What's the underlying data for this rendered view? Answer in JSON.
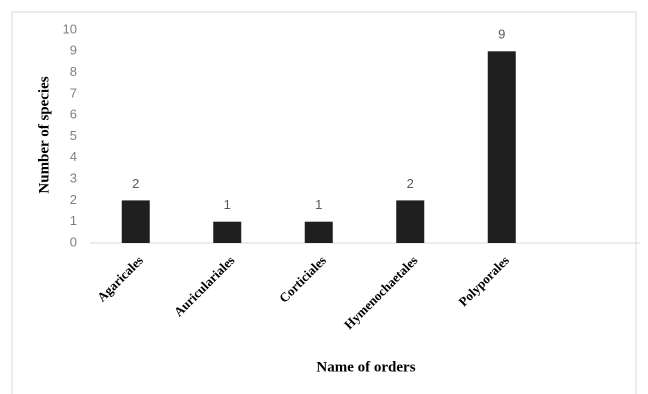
{
  "chart_data": {
    "type": "bar",
    "xlabel": "Name of orders",
    "ylabel": "Number of species",
    "categories": [
      "Agaricales",
      "Auriculariales",
      "Corticiales",
      "Hymenochaetales",
      "Polyporales"
    ],
    "values": [
      2,
      1,
      1,
      2,
      9
    ],
    "color": "#1f1f1f",
    "ylim": [
      0,
      10
    ],
    "yticks": [
      0,
      1,
      2,
      3,
      4,
      5,
      6,
      7,
      8,
      9,
      10
    ],
    "grid": false
  }
}
